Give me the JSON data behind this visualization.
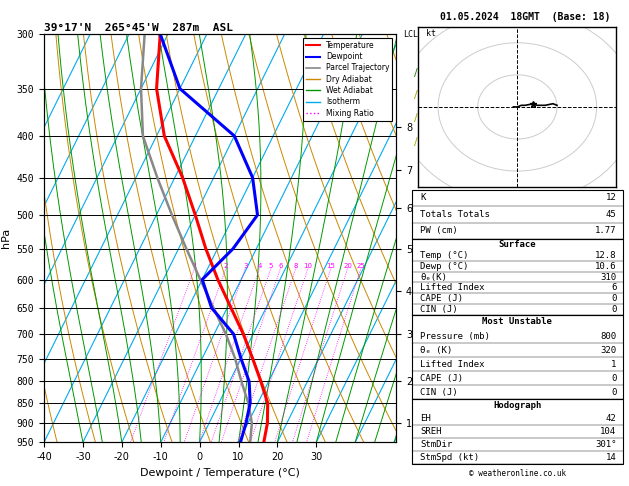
{
  "title_left": "39°17'N  265°45'W  287m  ASL",
  "title_right": "01.05.2024  18GMT  (Base: 18)",
  "xlabel": "Dewpoint / Temperature (°C)",
  "ylabel_left": "hPa",
  "pressure_levels": [
    300,
    350,
    400,
    450,
    500,
    550,
    600,
    650,
    700,
    750,
    800,
    850,
    900,
    950
  ],
  "pressure_labels": [
    "300",
    "350",
    "400",
    "450",
    "500",
    "550",
    "600",
    "650",
    "700",
    "750",
    "800",
    "850",
    "900",
    "950"
  ],
  "xlim": [
    -40,
    35
  ],
  "xticks": [
    -40,
    -30,
    -20,
    -10,
    0,
    10,
    20,
    30
  ],
  "temp_profile_T": [
    16.5,
    15.0,
    12.5,
    8.0,
    3.0,
    -2.5,
    -9.0,
    -16.0,
    -23.0,
    -30.0,
    -38.0,
    -48.0,
    -56.0,
    -62.0
  ],
  "temp_profile_P": [
    950,
    900,
    850,
    800,
    750,
    700,
    650,
    600,
    550,
    500,
    450,
    400,
    350,
    300
  ],
  "dewp_profile_T": [
    10.5,
    9.5,
    8.0,
    5.0,
    0.0,
    -5.0,
    -14.0,
    -20.0,
    -16.0,
    -14.0,
    -20.0,
    -30.0,
    -50.0,
    -62.0
  ],
  "dewp_profile_P": [
    950,
    900,
    850,
    800,
    750,
    700,
    650,
    600,
    550,
    500,
    450,
    400,
    350,
    300
  ],
  "parcel_T": [
    13.0,
    11.0,
    7.5,
    3.0,
    -1.5,
    -7.0,
    -13.5,
    -20.5,
    -28.0,
    -36.0,
    -44.5,
    -53.5,
    -60.0,
    -66.0
  ],
  "parcel_P": [
    950,
    900,
    850,
    800,
    750,
    700,
    650,
    600,
    550,
    500,
    450,
    400,
    350,
    300
  ],
  "temp_color": "#ff0000",
  "dewp_color": "#0000ff",
  "parcel_color": "#888888",
  "dry_adiabat_color": "#cc8800",
  "wet_adiabat_color": "#009900",
  "isotherm_color": "#00aaee",
  "mixing_ratio_color": "#ff00ff",
  "km_ticks": [
    1,
    2,
    3,
    4,
    5,
    6,
    7,
    8
  ],
  "km_pressures": [
    900,
    800,
    700,
    620,
    550,
    490,
    440,
    390
  ],
  "right_panel": {
    "K": 12,
    "TotTot": 45,
    "PW_cm": 1.77,
    "surf_temp": 12.8,
    "surf_dewp": 10.6,
    "surf_thetae": 310,
    "surf_li": 6,
    "surf_cape": 0,
    "surf_cin": 0,
    "mu_pres": 800,
    "mu_thetae": 320,
    "mu_li": 1,
    "mu_cape": 0,
    "mu_cin": 0,
    "EH": 42,
    "SREH": 104,
    "StmDir": "301°",
    "StmSpd_kt": 14
  },
  "background_color": "#ffffff",
  "skew_factor": 45.0,
  "PMIN": 300,
  "PMAX": 950
}
